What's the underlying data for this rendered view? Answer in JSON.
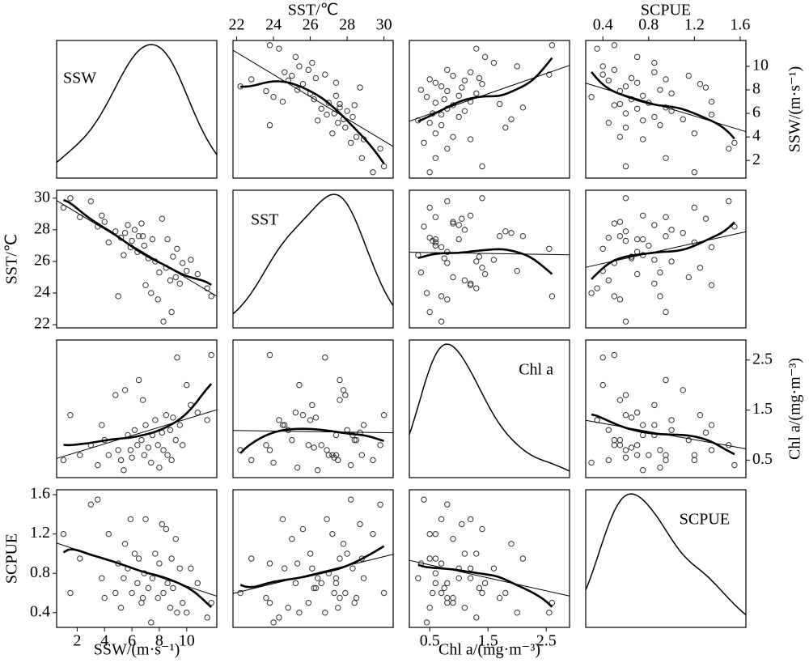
{
  "chart_data": {
    "type": "scatter-matrix",
    "variables": [
      {
        "name": "SSW",
        "axis_label": "SSW/(m·s⁻¹)",
        "lim": [
          0.5,
          12.2
        ],
        "ticks": [
          2,
          4,
          6,
          8,
          10
        ],
        "values": [
          1.0,
          1.5,
          2.2,
          3.0,
          3.5,
          4.0,
          4.3,
          4.8,
          5.0,
          5.2,
          5.5,
          5.7,
          5.9,
          6.0,
          6.2,
          6.4,
          6.5,
          6.7,
          6.9,
          7.0,
          7.2,
          7.4,
          7.5,
          7.7,
          7.9,
          8.0,
          8.2,
          8.3,
          8.5,
          8.6,
          8.8,
          9.0,
          9.2,
          9.3,
          9.5,
          9.7,
          10.0,
          10.3,
          10.8,
          11.5,
          11.8,
          3.8,
          6.8,
          8.9,
          5.4
        ]
      },
      {
        "name": "SST",
        "axis_label": "SST/℃",
        "lim": [
          21.8,
          30.5
        ],
        "ticks": [
          22,
          24,
          26,
          28,
          30
        ],
        "values": [
          29.4,
          30.0,
          28.8,
          29.8,
          28.2,
          28.5,
          27.2,
          27.9,
          23.8,
          27.5,
          27.8,
          28.3,
          26.9,
          27.3,
          28.0,
          26.6,
          27.6,
          28.4,
          27.0,
          24.5,
          26.2,
          24.0,
          27.4,
          26.0,
          23.6,
          25.3,
          28.7,
          22.2,
          25.6,
          27.4,
          24.8,
          26.3,
          25.0,
          26.8,
          24.6,
          25.9,
          25.4,
          26.1,
          25.2,
          24.3,
          23.8,
          28.9,
          27.6,
          22.8,
          26.4
        ]
      },
      {
        "name": "Chl a",
        "axis_label": "Chl a/(mg·m⁻³)",
        "lim": [
          0.15,
          2.9
        ],
        "ticks": [
          0.5,
          1.5,
          2.5
        ],
        "values": [
          0.5,
          1.4,
          0.6,
          0.8,
          0.4,
          0.9,
          0.6,
          1.8,
          0.7,
          0.5,
          1.9,
          1.0,
          0.7,
          0.55,
          1.1,
          0.8,
          2.1,
          0.9,
          0.6,
          1.2,
          0.75,
          0.45,
          1.0,
          1.3,
          0.8,
          0.35,
          1.05,
          0.7,
          1.4,
          0.6,
          1.1,
          1.35,
          0.9,
          2.55,
          1.2,
          0.8,
          2.0,
          1.6,
          1.45,
          1.3,
          2.6,
          1.2,
          1.7,
          0.5,
          0.3
        ]
      },
      {
        "name": "SCPUE",
        "axis_label": "SCPUE",
        "lim": [
          0.25,
          1.65
        ],
        "ticks": [
          0.4,
          0.8,
          1.2,
          1.6
        ],
        "values": [
          1.2,
          0.6,
          0.95,
          1.5,
          1.55,
          0.55,
          1.2,
          0.6,
          0.9,
          0.45,
          1.1,
          0.85,
          1.35,
          0.6,
          1.0,
          0.7,
          0.95,
          0.5,
          0.8,
          1.35,
          0.65,
          0.3,
          0.75,
          1.0,
          0.55,
          0.9,
          1.3,
          0.6,
          1.25,
          0.7,
          0.45,
          0.65,
          1.15,
          0.4,
          0.85,
          0.5,
          0.4,
          0.85,
          0.7,
          0.35,
          0.5,
          0.75,
          0.55,
          0.95,
          0.75
        ]
      }
    ]
  }
}
